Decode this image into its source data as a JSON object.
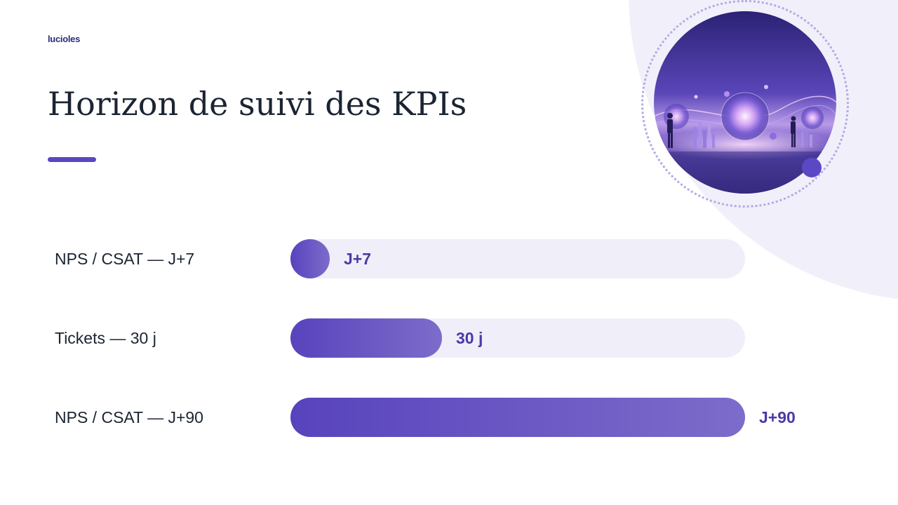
{
  "logo_text": "lucioles",
  "title": "Horizon de suivi des KPIs",
  "colors": {
    "accent": "#5a48c0",
    "bar_start": "#5843bd",
    "bar_end": "#7d6cca",
    "track": "#f0eef9",
    "value_text": "#4a3aa8",
    "title_text": "#1b2433"
  },
  "hero_image": {
    "icon": "futuristic-network-illustration"
  },
  "chart_data": {
    "type": "bar",
    "orientation": "horizontal",
    "categories": [
      "NPS / CSAT — J+7",
      "Tickets — 30 j",
      "NPS / CSAT — J+90"
    ],
    "values": [
      7,
      30,
      90
    ],
    "value_labels": [
      "J+7",
      "30 j",
      "J+90"
    ],
    "unit": "jours",
    "xlim": [
      0,
      90
    ],
    "title": "",
    "xlabel": "",
    "ylabel": "",
    "grid": false,
    "legend": "none"
  }
}
